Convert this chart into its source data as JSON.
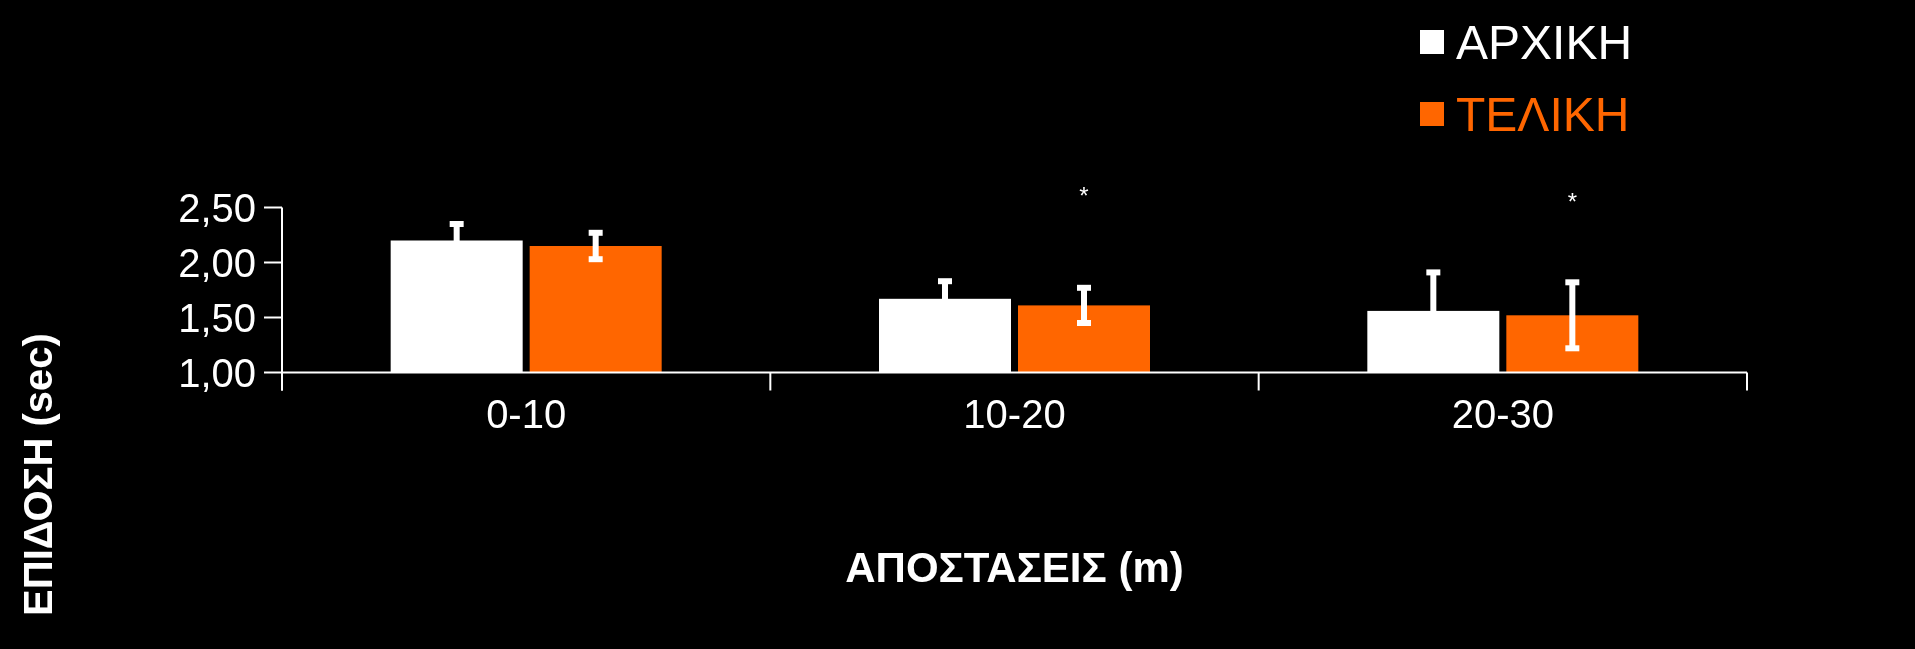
{
  "chart_data": {
    "type": "bar",
    "xlabel": "ΑΠΟΣΤΑΣΕΙΣ (m)",
    "ylabel": "ΕΠΙΔΟΣΗ (sec)",
    "categories": [
      "0-10",
      "10-20",
      "20-30"
    ],
    "series": [
      {
        "name": "ΑΡΧΙΚΗ",
        "color": "#ffffff",
        "values": [
          2.2,
          1.67,
          1.56
        ],
        "errors": [
          0.15,
          0.16,
          0.35
        ]
      },
      {
        "name": "ΤΕΛΙΚΗ",
        "color": "#ff6600",
        "values": [
          2.15,
          1.61,
          1.52
        ],
        "errors": [
          0.12,
          0.16,
          0.3
        ]
      }
    ],
    "ylim": [
      1,
      2.5
    ],
    "yticks": [
      {
        "value": 1,
        "label": "1,00"
      },
      {
        "value": 1.5,
        "label": "1,50"
      },
      {
        "value": 2,
        "label": "2,00"
      },
      {
        "value": 2.5,
        "label": "2,50"
      }
    ],
    "annotations": [
      "*",
      "*"
    ],
    "legend": "top right",
    "grid": false
  }
}
